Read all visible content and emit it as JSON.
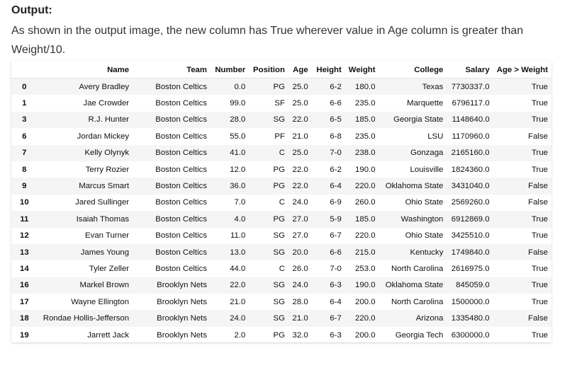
{
  "heading": "Output:",
  "description": "As shown in the output image, the new column has True wherever value in Age column is greater than Weight/10.",
  "table": {
    "columns": [
      "",
      "Name",
      "Team",
      "Number",
      "Position",
      "Age",
      "Height",
      "Weight",
      "College",
      "Salary",
      "Age > Weight"
    ],
    "rows": [
      [
        "0",
        "Avery Bradley",
        "Boston Celtics",
        "0.0",
        "PG",
        "25.0",
        "6-2",
        "180.0",
        "Texas",
        "7730337.0",
        "True"
      ],
      [
        "1",
        "Jae Crowder",
        "Boston Celtics",
        "99.0",
        "SF",
        "25.0",
        "6-6",
        "235.0",
        "Marquette",
        "6796117.0",
        "True"
      ],
      [
        "3",
        "R.J. Hunter",
        "Boston Celtics",
        "28.0",
        "SG",
        "22.0",
        "6-5",
        "185.0",
        "Georgia State",
        "1148640.0",
        "True"
      ],
      [
        "6",
        "Jordan Mickey",
        "Boston Celtics",
        "55.0",
        "PF",
        "21.0",
        "6-8",
        "235.0",
        "LSU",
        "1170960.0",
        "False"
      ],
      [
        "7",
        "Kelly Olynyk",
        "Boston Celtics",
        "41.0",
        "C",
        "25.0",
        "7-0",
        "238.0",
        "Gonzaga",
        "2165160.0",
        "True"
      ],
      [
        "8",
        "Terry Rozier",
        "Boston Celtics",
        "12.0",
        "PG",
        "22.0",
        "6-2",
        "190.0",
        "Louisville",
        "1824360.0",
        "True"
      ],
      [
        "9",
        "Marcus Smart",
        "Boston Celtics",
        "36.0",
        "PG",
        "22.0",
        "6-4",
        "220.0",
        "Oklahoma State",
        "3431040.0",
        "False"
      ],
      [
        "10",
        "Jared Sullinger",
        "Boston Celtics",
        "7.0",
        "C",
        "24.0",
        "6-9",
        "260.0",
        "Ohio State",
        "2569260.0",
        "False"
      ],
      [
        "11",
        "Isaiah Thomas",
        "Boston Celtics",
        "4.0",
        "PG",
        "27.0",
        "5-9",
        "185.0",
        "Washington",
        "6912869.0",
        "True"
      ],
      [
        "12",
        "Evan Turner",
        "Boston Celtics",
        "11.0",
        "SG",
        "27.0",
        "6-7",
        "220.0",
        "Ohio State",
        "3425510.0",
        "True"
      ],
      [
        "13",
        "James Young",
        "Boston Celtics",
        "13.0",
        "SG",
        "20.0",
        "6-6",
        "215.0",
        "Kentucky",
        "1749840.0",
        "False"
      ],
      [
        "14",
        "Tyler Zeller",
        "Boston Celtics",
        "44.0",
        "C",
        "26.0",
        "7-0",
        "253.0",
        "North Carolina",
        "2616975.0",
        "True"
      ],
      [
        "16",
        "Markel Brown",
        "Brooklyn Nets",
        "22.0",
        "SG",
        "24.0",
        "6-3",
        "190.0",
        "Oklahoma State",
        "845059.0",
        "True"
      ],
      [
        "17",
        "Wayne Ellington",
        "Brooklyn Nets",
        "21.0",
        "SG",
        "28.0",
        "6-4",
        "200.0",
        "North Carolina",
        "1500000.0",
        "True"
      ],
      [
        "18",
        "Rondae Hollis-Jefferson",
        "Brooklyn Nets",
        "24.0",
        "SG",
        "21.0",
        "6-7",
        "220.0",
        "Arizona",
        "1335480.0",
        "False"
      ],
      [
        "19",
        "Jarrett Jack",
        "Brooklyn Nets",
        "2.0",
        "PG",
        "32.0",
        "6-3",
        "200.0",
        "Georgia Tech",
        "6300000.0",
        "True"
      ]
    ]
  }
}
